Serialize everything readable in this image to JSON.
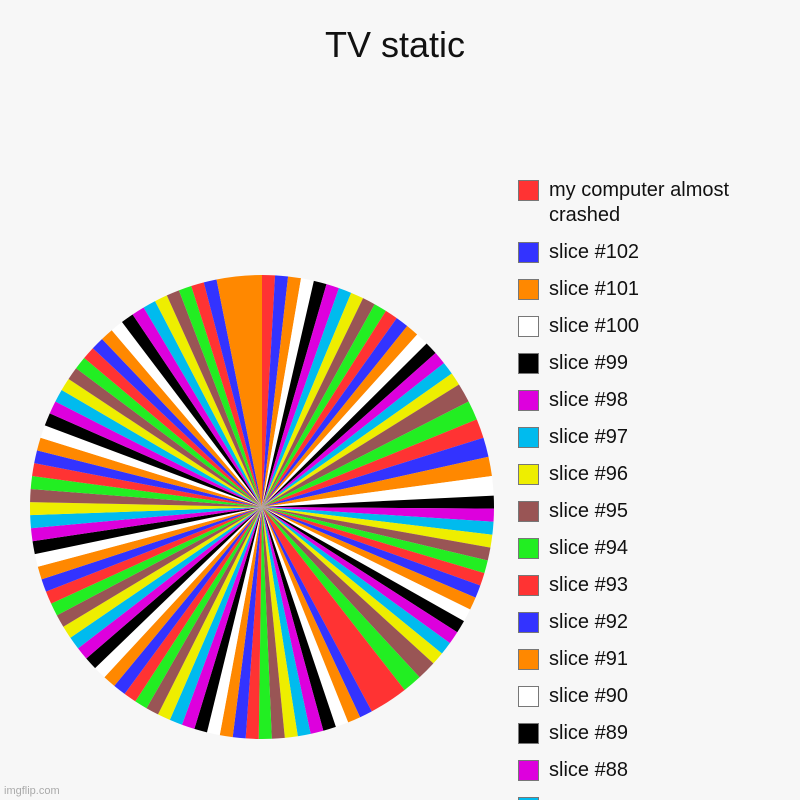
{
  "chart_data": {
    "type": "pie",
    "title": "TV static",
    "note_start_angle": "",
    "colors": [
      "#ff3333",
      "#3333ff",
      "#ff8800",
      "#ffffff",
      "#000000",
      "#dd00dd",
      "#00bbee",
      "#eeee00",
      "#995555",
      "#22ee22"
    ],
    "legend": [
      {
        "label": "my computer almost crashed",
        "color": "#ff3333"
      },
      {
        "label": "slice #102",
        "color": "#3333ff"
      },
      {
        "label": "slice #101",
        "color": "#ff8800"
      },
      {
        "label": "slice #100",
        "color": "#ffffff"
      },
      {
        "label": "slice #99",
        "color": "#000000"
      },
      {
        "label": "slice #98",
        "color": "#dd00dd"
      },
      {
        "label": "slice #97",
        "color": "#00bbee"
      },
      {
        "label": "slice #96",
        "color": "#eeee00"
      },
      {
        "label": "slice #95",
        "color": "#995555"
      },
      {
        "label": "slice #94",
        "color": "#22ee22"
      },
      {
        "label": "slice #93",
        "color": "#ff3333"
      },
      {
        "label": "slice #92",
        "color": "#3333ff"
      },
      {
        "label": "slice #91",
        "color": "#ff8800"
      },
      {
        "label": "slice #90",
        "color": "#ffffff"
      },
      {
        "label": "slice #89",
        "color": "#000000"
      },
      {
        "label": "slice #88",
        "color": "#dd00dd"
      },
      {
        "label": "",
        "color": "#00bbee"
      }
    ],
    "values": [
      2,
      2,
      2,
      2,
      2,
      2,
      2,
      2,
      2,
      2,
      2,
      2,
      2,
      2,
      2,
      2,
      2,
      2,
      3,
      3,
      3,
      3,
      3,
      3,
      2,
      2,
      2,
      2,
      2,
      2,
      2,
      2,
      2,
      2,
      2,
      2,
      2,
      2,
      3,
      3,
      6,
      2,
      2,
      2,
      2,
      2,
      2,
      2,
      2,
      2,
      2,
      2,
      2,
      2,
      2,
      2,
      2,
      2,
      2,
      2,
      2,
      2,
      2,
      2,
      2,
      2,
      2,
      2,
      2,
      2,
      2,
      2,
      2,
      2,
      2,
      2,
      2,
      2,
      2,
      2,
      2,
      2,
      2,
      2,
      2,
      2,
      2,
      2,
      2,
      2,
      2,
      2,
      2,
      2,
      2,
      2,
      2,
      2,
      2,
      2,
      2,
      2,
      7
    ],
    "value_units": "relative share",
    "legend_placement": "right"
  },
  "watermark": "imgflip.com"
}
